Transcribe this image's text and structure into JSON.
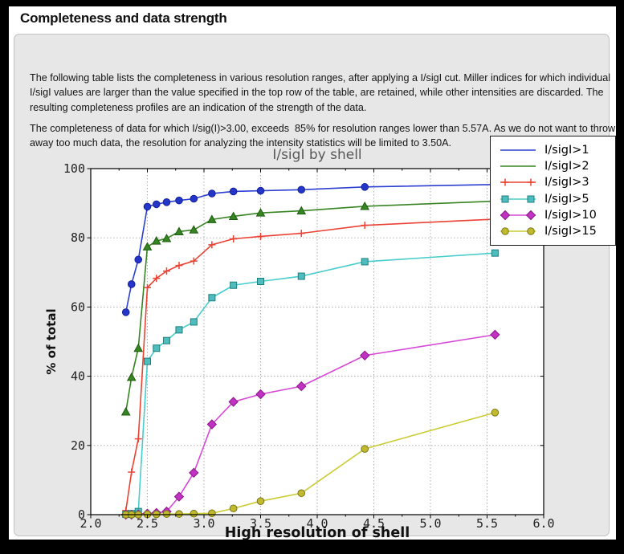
{
  "page": {
    "title": "Completeness and data strength",
    "paragraph1": "The following table lists the completeness in various resolution ranges, after applying a I/sigI cut. Miller indices for which individual I/sigI values are larger than the value specified in the top row of the table, are retained, while other intensities are discarded. The resulting completeness profiles are an indication of the strength of the data.",
    "paragraph2": "The completeness of data for which I/sig(I)>3.00, exceeds  85% for resolution ranges lower than 5.57A. As we do not want to throw away too much data, the resolution for analyzing the intensity statistics will be limited to 3.50A."
  },
  "colors": {
    "page_background": "#000000",
    "panel_background": "#ffffff",
    "groupbox_background": "#e7e7e7",
    "axes_background": "#ffffff",
    "grid": "#a3a3a3",
    "spine": "#000000",
    "tick_label": "#222222",
    "title_text": "#585858",
    "axis_label_text": "#111111"
  },
  "chart_data": {
    "type": "line",
    "title": "I/sigI by shell",
    "xlabel": "High resolution of shell",
    "ylabel": "% of total",
    "xlim": [
      2.0,
      6.0
    ],
    "ylim": [
      0,
      100
    ],
    "xticks": [
      2.0,
      2.5,
      3.0,
      3.5,
      4.0,
      4.5,
      5.0,
      5.5,
      6.0
    ],
    "xtick_labels": [
      "2.0",
      "2.5",
      "3.0",
      "3.5",
      "4.0",
      "4.5",
      "5.0",
      "5.5",
      "6.0"
    ],
    "x_minor_step": 0.25,
    "yticks": [
      0,
      20,
      40,
      60,
      80,
      100
    ],
    "ytick_labels": [
      "0",
      "20",
      "40",
      "60",
      "80",
      "100"
    ],
    "grid": true,
    "legend_position": "top-right",
    "x": [
      2.31,
      2.36,
      2.42,
      2.5,
      2.58,
      2.67,
      2.78,
      2.91,
      3.07,
      3.26,
      3.5,
      3.86,
      4.42,
      5.57
    ],
    "series": [
      {
        "name": "I/sigI>1",
        "line_color": "#2b3fd0",
        "marker": "circle",
        "marker_fill": "#2436c8",
        "marker_edge": "#14209a",
        "legend_marker": false,
        "values": [
          58.5,
          66.6,
          73.7,
          89.0,
          89.7,
          90.3,
          90.8,
          91.3,
          92.8,
          93.4,
          93.6,
          93.9,
          94.7,
          95.4
        ]
      },
      {
        "name": "I/sigI>2",
        "line_color": "#368422",
        "marker": "triangle",
        "marker_fill": "#368422",
        "marker_edge": "#1d5c10",
        "legend_marker": false,
        "values": [
          29.7,
          39.7,
          48.1,
          77.4,
          79.1,
          79.8,
          81.8,
          82.3,
          85.3,
          86.2,
          87.2,
          87.8,
          89.1,
          90.6
        ]
      },
      {
        "name": "I/sigI>3",
        "line_color": "#ea4234",
        "marker": "plus",
        "marker_fill": "#ea4234",
        "marker_edge": "#ea4234",
        "legend_marker": true,
        "values": [
          1.2,
          12.3,
          21.9,
          65.6,
          68.3,
          70.4,
          72.0,
          73.3,
          78.0,
          79.7,
          80.4,
          81.3,
          83.6,
          85.4
        ]
      },
      {
        "name": "I/sigI>5",
        "line_color": "#48cccc",
        "marker": "square",
        "marker_fill": "#4fbdbd",
        "marker_edge": "#1d7e7e",
        "legend_marker": true,
        "values": [
          0.1,
          0.3,
          0.9,
          44.3,
          48.1,
          50.3,
          53.4,
          55.7,
          62.7,
          66.3,
          67.4,
          68.9,
          73.1,
          75.6
        ]
      },
      {
        "name": "I/sigI>10",
        "line_color": "#d648d6",
        "marker": "diamond",
        "marker_fill": "#c232c2",
        "marker_edge": "#8a188a",
        "legend_marker": true,
        "values": [
          0.0,
          0.0,
          0.1,
          0.3,
          0.5,
          0.9,
          5.2,
          12.1,
          26.1,
          32.6,
          34.8,
          37.1,
          46.0,
          52.0
        ]
      },
      {
        "name": "I/sigI>15",
        "line_color": "#cbcb34",
        "marker": "circle",
        "marker_fill": "#c2ba2e",
        "marker_edge": "#77771a",
        "legend_marker": true,
        "values": [
          0.0,
          0.0,
          0.0,
          0.1,
          0.1,
          0.2,
          0.2,
          0.3,
          0.4,
          1.8,
          3.9,
          6.2,
          19.0,
          29.5
        ]
      }
    ]
  }
}
